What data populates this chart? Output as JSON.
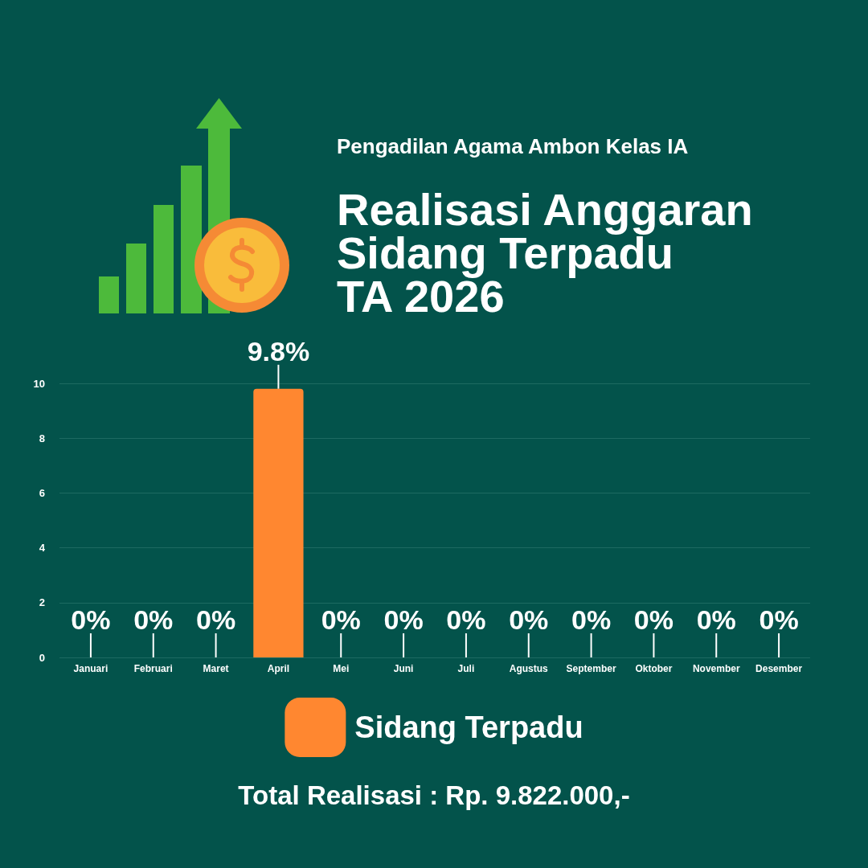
{
  "chart_data": {
    "type": "bar",
    "title": "Realisasi Anggaran\nSidang Terpadu\nTA 2026",
    "subtitle": "Pengadilan Agama Ambon Kelas IA",
    "categories": [
      "Januari",
      "Februari",
      "Maret",
      "April",
      "Mei",
      "Juni",
      "Juli",
      "Agustus",
      "September",
      "Oktober",
      "November",
      "Desember"
    ],
    "series": [
      {
        "name": "Sidang Terpadu",
        "color": "#ff8730",
        "values": [
          0,
          0,
          0,
          9.8,
          0,
          0,
          0,
          0,
          0,
          0,
          0,
          0
        ],
        "value_labels": [
          "0%",
          "0%",
          "0%",
          "9.8%",
          "0%",
          "0%",
          "0%",
          "0%",
          "0%",
          "0%",
          "0%",
          "0%"
        ]
      }
    ],
    "ylim": [
      0,
      10
    ],
    "yticks": [
      0,
      2,
      4,
      6,
      8,
      10
    ],
    "grid": "y",
    "legend": "bottom",
    "annotations": [
      "Total Realisasi : Rp. 9.822.000,-"
    ]
  }
}
